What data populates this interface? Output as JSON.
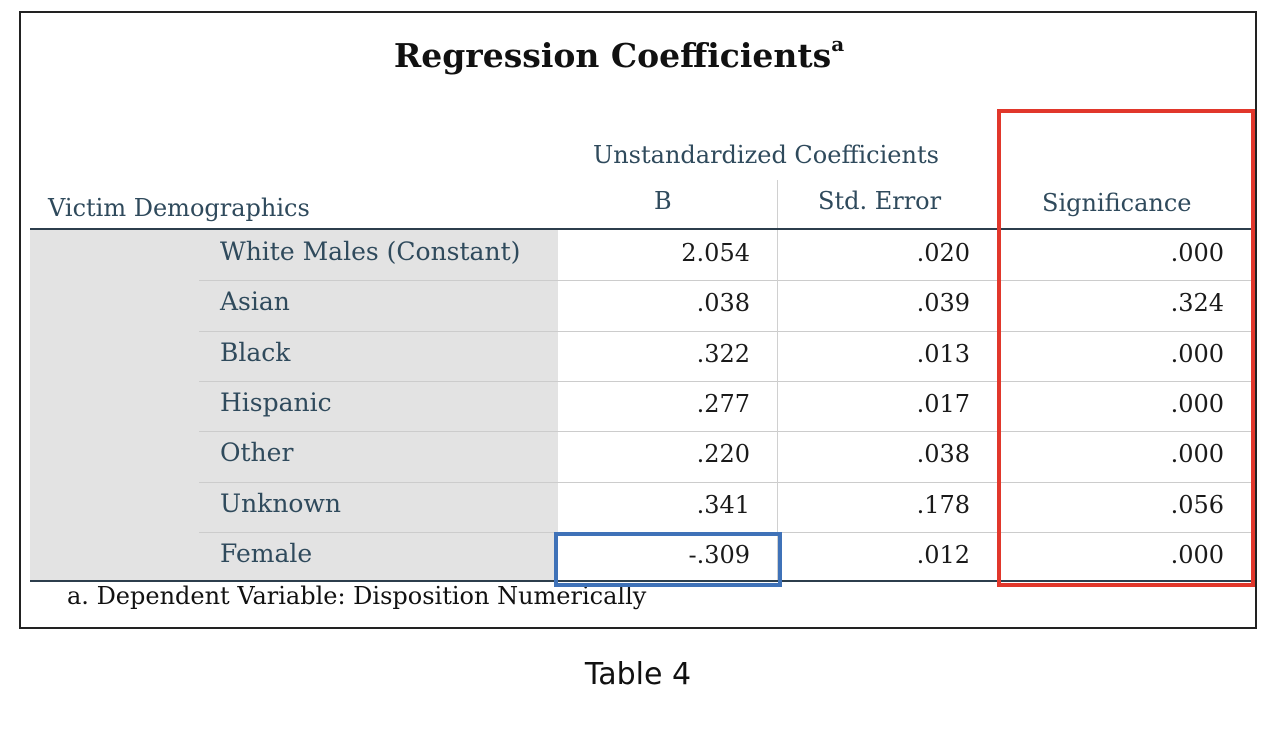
{
  "table": {
    "title": "Regression Coefficients",
    "title_superscript": "a",
    "group_header": "Unstandardized Coefficients",
    "row_header": "Victim Demographics",
    "columns": [
      "B",
      "Std. Error",
      "Significance"
    ],
    "rows": [
      {
        "label": "White Males (Constant)",
        "b": "2.054",
        "se": ".020",
        "sig": ".000"
      },
      {
        "label": "Asian",
        "b": ".038",
        "se": ".039",
        "sig": ".324"
      },
      {
        "label": "Black",
        "b": ".322",
        "se": ".013",
        "sig": ".000"
      },
      {
        "label": "Hispanic",
        "b": ".277",
        "se": ".017",
        "sig": ".000"
      },
      {
        "label": "Other",
        "b": ".220",
        "se": ".038",
        "sig": ".000"
      },
      {
        "label": "Unknown",
        "b": ".341",
        "se": ".178",
        "sig": ".056"
      },
      {
        "label": "Female",
        "b": "-.309",
        "se": ".012",
        "sig": ".000"
      }
    ],
    "footnote": "a. Dependent Variable: Disposition Numerically"
  },
  "caption": "Table 4",
  "highlight_colors": {
    "significance_column": "#e1372b",
    "female_b_cell": "#3f72b8"
  }
}
